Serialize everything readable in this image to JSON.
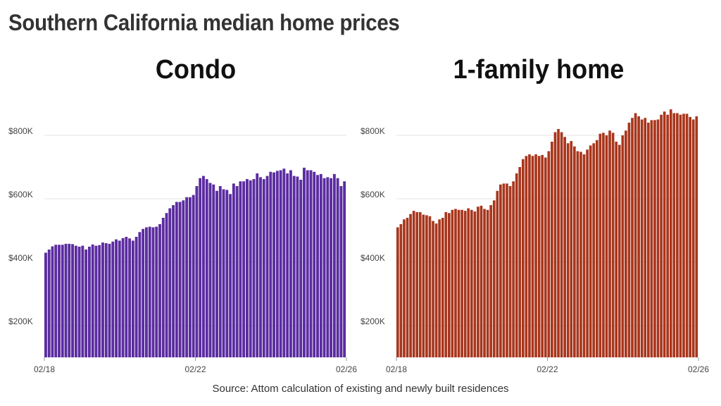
{
  "title": "Southern California median home prices",
  "source": "Source: Attom calculation of existing and newly built residences",
  "chart_data": [
    {
      "type": "bar",
      "title": "Condo",
      "color": "#5b2ca0",
      "ylim": [
        100000,
        900000
      ],
      "yticks": [
        200000,
        400000,
        600000,
        800000
      ],
      "ytick_labels": [
        "$200K",
        "$400K",
        "$600K",
        "$800K"
      ],
      "xtick_labels": [
        "02/18",
        "02/22",
        "02/26"
      ],
      "grid": true,
      "values": [
        430000,
        440000,
        450000,
        455000,
        455000,
        455000,
        458000,
        458000,
        457000,
        452000,
        449000,
        452000,
        440000,
        449000,
        456000,
        452000,
        454000,
        462000,
        460000,
        458000,
        465000,
        472000,
        468000,
        476000,
        480000,
        475000,
        468000,
        480000,
        495000,
        505000,
        510000,
        512000,
        510000,
        512000,
        520000,
        540000,
        555000,
        570000,
        580000,
        590000,
        590000,
        595000,
        605000,
        605000,
        612000,
        640000,
        665000,
        672000,
        662000,
        650000,
        645000,
        625000,
        640000,
        630000,
        628000,
        615000,
        648000,
        640000,
        655000,
        655000,
        662000,
        658000,
        662000,
        680000,
        668000,
        662000,
        672000,
        685000,
        683000,
        688000,
        690000,
        695000,
        680000,
        690000,
        672000,
        670000,
        660000,
        698000,
        690000,
        690000,
        685000,
        675000,
        678000,
        665000,
        668000,
        665000,
        678000,
        665000,
        640000,
        655000
      ]
    },
    {
      "type": "bar",
      "title": "1-family home",
      "color": "#a8361c",
      "ylim": [
        100000,
        900000
      ],
      "yticks": [
        200000,
        400000,
        600000,
        800000
      ],
      "ytick_labels": [
        "$200K",
        "$400K",
        "$600K",
        "$800K"
      ],
      "xtick_labels": [
        "02/18",
        "02/22",
        "02/26"
      ],
      "grid": true,
      "values": [
        510000,
        520000,
        535000,
        540000,
        552000,
        562000,
        558000,
        558000,
        550000,
        548000,
        545000,
        530000,
        522000,
        535000,
        540000,
        558000,
        555000,
        565000,
        568000,
        565000,
        565000,
        562000,
        570000,
        565000,
        560000,
        575000,
        578000,
        568000,
        565000,
        580000,
        595000,
        625000,
        645000,
        648000,
        648000,
        640000,
        655000,
        680000,
        700000,
        725000,
        735000,
        740000,
        735000,
        740000,
        735000,
        738000,
        730000,
        750000,
        780000,
        810000,
        820000,
        810000,
        795000,
        775000,
        782000,
        765000,
        750000,
        748000,
        740000,
        755000,
        768000,
        775000,
        785000,
        805000,
        808000,
        800000,
        815000,
        808000,
        780000,
        770000,
        800000,
        815000,
        840000,
        855000,
        870000,
        860000,
        850000,
        855000,
        840000,
        848000,
        848000,
        850000,
        865000,
        875000,
        865000,
        882000,
        870000,
        870000,
        865000,
        868000,
        868000,
        858000,
        850000,
        860000
      ]
    }
  ]
}
